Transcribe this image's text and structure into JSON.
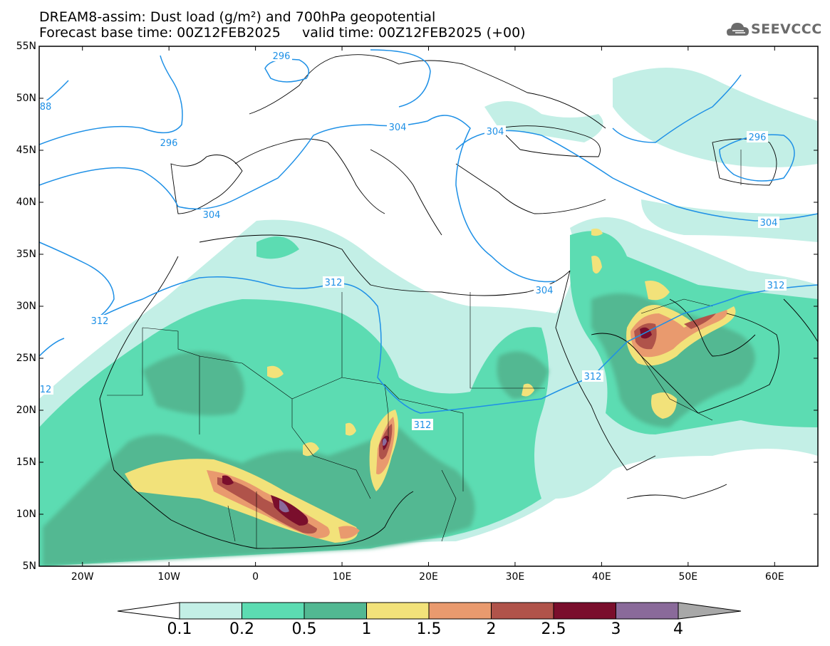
{
  "title": {
    "line1": "DREAM8-assim: Dust load (g/m²) and 700hPa geopotential",
    "line2": "Forecast base time: 00Z12FEB2025     valid time: 00Z12FEB2025 (+00)"
  },
  "logo": {
    "text": "SEEVCCC",
    "icon": "cloud-logo-icon"
  },
  "axes": {
    "lat_labels": [
      "55N",
      "50N",
      "45N",
      "40N",
      "35N",
      "30N",
      "25N",
      "20N",
      "15N",
      "10N",
      "5N"
    ],
    "lon_labels": [
      "20W",
      "10W",
      "0",
      "10E",
      "20E",
      "30E",
      "40E",
      "50E",
      "60E"
    ],
    "lat_range": [
      5,
      55
    ],
    "lon_range": [
      -25,
      65
    ]
  },
  "colorbar": {
    "labels": [
      "0.1",
      "0.2",
      "0.5",
      "1",
      "1.5",
      "2",
      "2.5",
      "3",
      "4"
    ],
    "colors": [
      "#c3efe6",
      "#5cdcb2",
      "#52b892",
      "#f2e27a",
      "#e99a6e",
      "#b0534a",
      "#7a0e2c",
      "#8a6a9a"
    ],
    "under_color": "#ffffff",
    "over_color": "#a8a8a8"
  },
  "contour_labels": [
    "296",
    "296",
    "304",
    "304",
    "304",
    "312",
    "312",
    "312",
    "312",
    "88",
    "12"
  ],
  "colors": {
    "contour_line": "#1e90e6",
    "frame": "#000000",
    "border": "#000000"
  }
}
